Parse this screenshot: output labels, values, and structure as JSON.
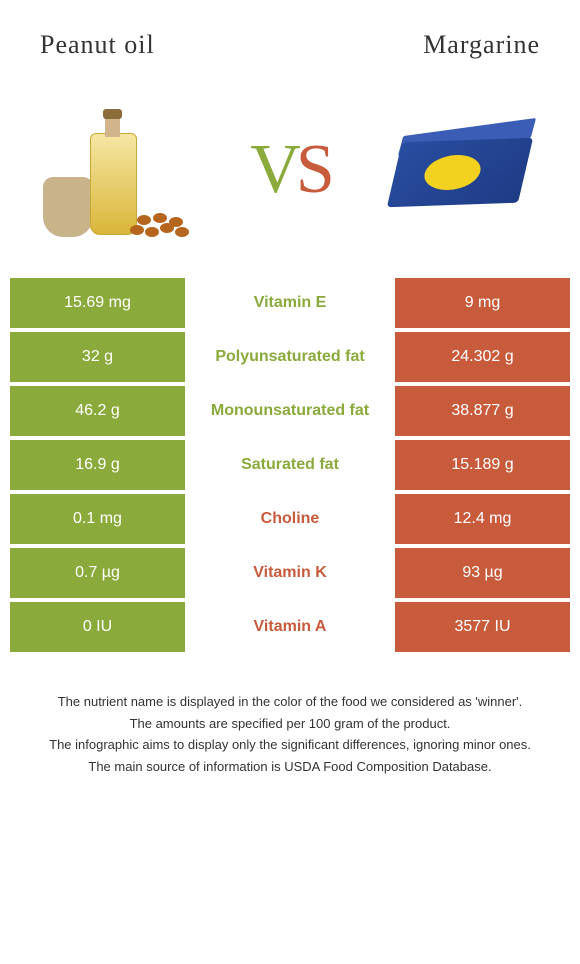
{
  "titles": {
    "left": "Peanut oil",
    "right": "Margarine"
  },
  "vs": {
    "v": "V",
    "s": "S"
  },
  "colors": {
    "left_bar": "#8aaa3b",
    "right_bar": "#c75b3b",
    "background": "#ffffff"
  },
  "rows": [
    {
      "left": "15.69 mg",
      "label": "Vitamin E",
      "right": "9 mg",
      "winner": "left"
    },
    {
      "left": "32 g",
      "label": "Polyunsaturated fat",
      "right": "24.302 g",
      "winner": "left"
    },
    {
      "left": "46.2 g",
      "label": "Monounsaturated fat",
      "right": "38.877 g",
      "winner": "left"
    },
    {
      "left": "16.9 g",
      "label": "Saturated fat",
      "right": "15.189 g",
      "winner": "left"
    },
    {
      "left": "0.1 mg",
      "label": "Choline",
      "right": "12.4 mg",
      "winner": "right"
    },
    {
      "left": "0.7 µg",
      "label": "Vitamin K",
      "right": "93 µg",
      "winner": "right"
    },
    {
      "left": "0 IU",
      "label": "Vitamin A",
      "right": "3577 IU",
      "winner": "right"
    }
  ],
  "notes": [
    "The nutrient name is displayed in the color of the food we considered as 'winner'.",
    "The amounts are specified per 100 gram of the product.",
    "The infographic aims to display only the significant differences, ignoring minor ones.",
    "The main source of information is USDA Food Composition Database."
  ]
}
